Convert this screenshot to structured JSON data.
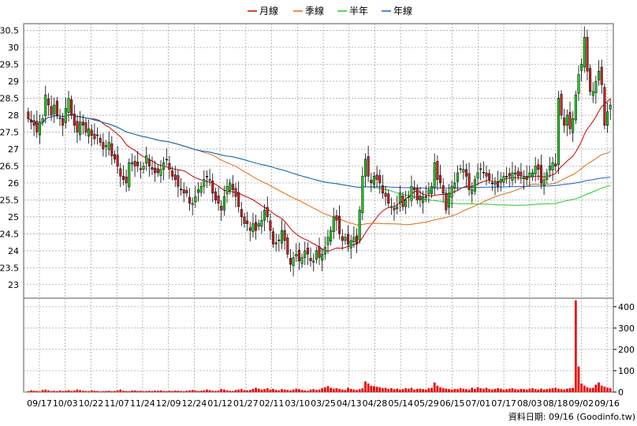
{
  "legend": [
    {
      "label": "月線",
      "color": "#cc0000"
    },
    {
      "label": "季線",
      "color": "#e06a10"
    },
    {
      "label": "半年",
      "color": "#22cc22"
    },
    {
      "label": "年線",
      "color": "#1a5fcc"
    }
  ],
  "source_text": "資料日期: 09/16 (Goodinfo.tw)",
  "chart_data": [
    {
      "type": "candlestick",
      "title": "",
      "ylim": [
        22.6,
        30.7
      ],
      "yticks": [
        "30.5",
        "30",
        "29.5",
        "29",
        "28.5",
        "28",
        "27.5",
        "27",
        "26.5",
        "26",
        "25.5",
        "25",
        "24.5",
        "24",
        "23.5",
        "23"
      ],
      "x_ticks": [
        "09/17",
        "10/03",
        "10/22",
        "11/07",
        "11/24",
        "12/09",
        "12/24",
        "01/12",
        "01/27",
        "02/11",
        "03/10",
        "03/25",
        "04/13",
        "04/28",
        "05/14",
        "05/29",
        "06/15",
        "07/01",
        "07/17",
        "08/03",
        "08/18",
        "09/02",
        "09/16"
      ],
      "grid": true,
      "colors": {
        "up": "#22cc22",
        "down": "#cc2222",
        "flat": "#000000"
      },
      "close": [
        27.9,
        27.8,
        27.7,
        27.5,
        27.8,
        27.9,
        28.6,
        28.3,
        28.0,
        28.3,
        28.0,
        27.9,
        27.7,
        28.2,
        28.5,
        28.0,
        27.7,
        27.5,
        27.8,
        27.7,
        27.5,
        27.6,
        27.4,
        27.3,
        27.4,
        27.2,
        27.0,
        27.1,
        27.2,
        26.8,
        26.7,
        26.5,
        26.2,
        26.1,
        26.0,
        26.6,
        26.6,
        26.5,
        26.5,
        26.4,
        26.5,
        26.8,
        26.5,
        26.4,
        26.3,
        26.3,
        26.4,
        26.6,
        26.7,
        26.4,
        26.2,
        26.1,
        25.9,
        25.8,
        25.7,
        25.7,
        25.4,
        25.4,
        25.6,
        25.8,
        25.9,
        26.1,
        26.2,
        26.1,
        25.7,
        25.5,
        25.4,
        25.2,
        25.6,
        25.9,
        26.0,
        25.8,
        25.6,
        25.3,
        25.0,
        24.8,
        24.8,
        24.6,
        24.8,
        24.6,
        24.8,
        24.9,
        25.2,
        25.0,
        24.6,
        24.2,
        24.2,
        24.3,
        24.6,
        24.3,
        23.9,
        23.6,
        23.8,
        23.9,
        23.7,
        23.8,
        24.0,
        23.9,
        23.7,
        23.7,
        24.0,
        23.8,
        23.9,
        24.1,
        24.4,
        24.6,
        25.0,
        24.9,
        24.5,
        24.3,
        24.4,
        24.2,
        24.3,
        24.4,
        24.2,
        25.2,
        26.2,
        26.7,
        26.2,
        26.0,
        26.2,
        26.1,
        26.0,
        25.7,
        25.6,
        25.4,
        25.3,
        25.2,
        25.3,
        25.7,
        25.3,
        25.5,
        25.6,
        25.9,
        25.8,
        25.5,
        25.5,
        25.6,
        25.6,
        25.8,
        25.9,
        26.6,
        26.1,
        26.0,
        25.7,
        25.2,
        25.7,
        25.9,
        26.0,
        26.3,
        26.4,
        26.4,
        26.2,
        25.8,
        25.8,
        26.1,
        26.3,
        26.4,
        26.3,
        26.2,
        26.1,
        26.0,
        26.0,
        25.9,
        26.1,
        26.2,
        26.2,
        26.2,
        26.3,
        26.3,
        26.2,
        26.2,
        26.2,
        26.1,
        26.3,
        26.3,
        26.5,
        26.4,
        26.0,
        26.1,
        26.3,
        26.5,
        26.6,
        26.5,
        28.5,
        28.0,
        27.7,
        28.0,
        27.6,
        27.9,
        28.6,
        29.2,
        29.5,
        30.3,
        29.3,
        28.7,
        28.7,
        29.0,
        29.3,
        28.9,
        27.7,
        28.1,
        28.3
      ]
    },
    {
      "type": "bar",
      "title": "",
      "ylim": [
        0,
        440
      ],
      "yticks": [
        "400",
        "300",
        "200",
        "100",
        "0"
      ],
      "color": "#ee0000",
      "values": [
        4,
        8,
        6,
        5,
        3,
        10,
        12,
        8,
        5,
        6,
        4,
        7,
        5,
        6,
        9,
        5,
        7,
        12,
        9,
        6,
        5,
        4,
        8,
        6,
        5,
        3,
        4,
        5,
        6,
        4,
        5,
        8,
        12,
        6,
        5,
        4,
        7,
        8,
        5,
        6,
        4,
        5,
        6,
        5,
        7,
        6,
        8,
        5,
        4,
        6,
        5,
        7,
        6,
        5,
        4,
        6,
        8,
        10,
        7,
        5,
        6,
        8,
        12,
        9,
        6,
        5,
        7,
        15,
        12,
        8,
        6,
        5,
        10,
        12,
        14,
        9,
        8,
        10,
        15,
        20,
        16,
        12,
        14,
        18,
        12,
        15,
        10,
        8,
        14,
        12,
        10,
        8,
        12,
        16,
        14,
        10,
        8,
        6,
        12,
        14,
        10,
        12,
        18,
        22,
        28,
        20,
        16,
        18,
        15,
        12,
        10,
        20,
        15,
        12,
        10,
        14,
        18,
        50,
        40,
        30,
        28,
        25,
        22,
        18,
        20,
        15,
        18,
        14,
        16,
        12,
        14,
        18,
        16,
        20,
        12,
        15,
        16,
        14,
        12,
        18,
        20,
        45,
        30,
        22,
        18,
        16,
        14,
        12,
        15,
        14,
        18,
        16,
        14,
        12,
        20,
        15,
        22,
        18,
        16,
        20,
        14,
        12,
        15,
        18,
        16,
        12,
        14,
        16,
        18,
        14,
        12,
        15,
        14,
        12,
        16,
        18,
        14,
        12,
        16,
        12,
        14,
        16,
        18,
        20,
        16,
        14,
        12,
        16,
        18,
        20,
        430,
        120,
        40,
        30,
        22,
        18,
        20,
        35,
        45,
        30,
        25,
        20,
        18,
        28,
        22,
        20,
        15,
        18
      ]
    }
  ]
}
